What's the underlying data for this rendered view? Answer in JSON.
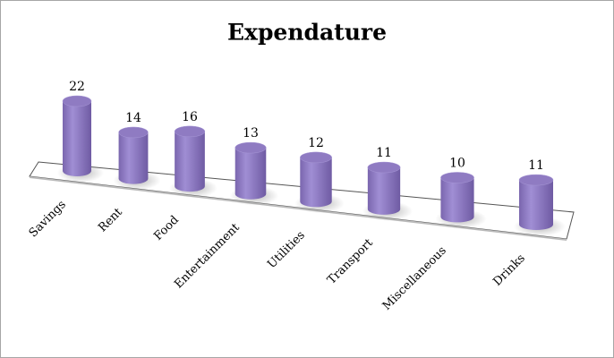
{
  "chart_data": {
    "type": "bar",
    "title": "Expendature",
    "categories": [
      "Savings",
      "Rent",
      "Food",
      "Entertainment",
      "Utilities",
      "Transport",
      "Miscellaneous",
      "Drinks"
    ],
    "values": [
      22,
      14,
      16,
      13,
      12,
      11,
      10,
      11
    ],
    "color": "#8f7bc2"
  }
}
